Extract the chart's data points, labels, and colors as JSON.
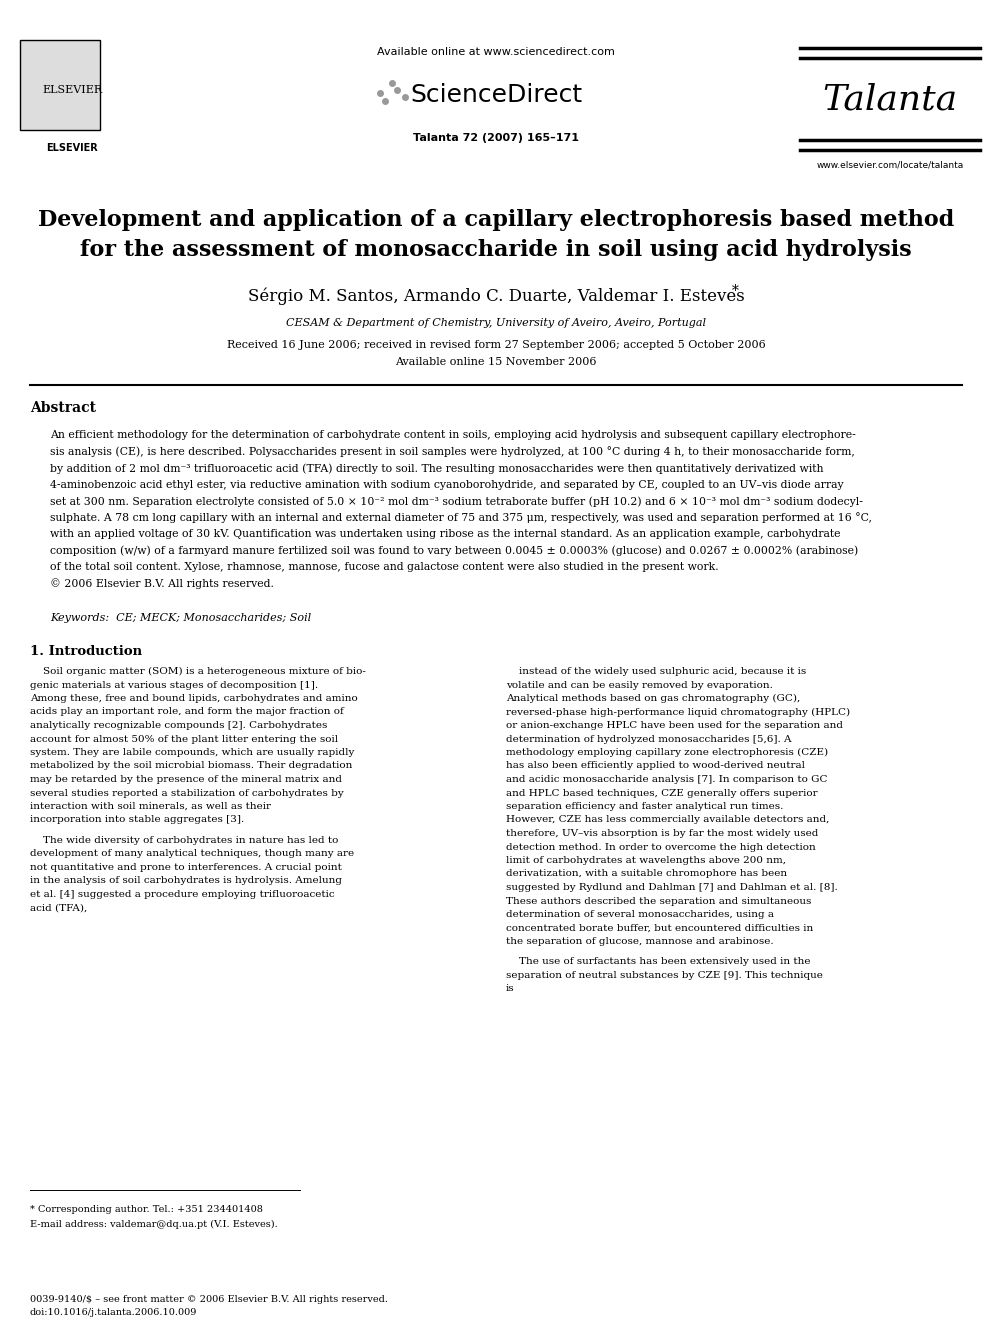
{
  "page_width": 9.92,
  "page_height": 13.23,
  "background_color": "#ffffff",
  "header": {
    "available_online_text": "Available online at www.sciencedirect.com",
    "sciencedirect_text": "ScienceDirect",
    "journal_name": "Talanta",
    "journal_info": "Talanta 72 (2007) 165–171",
    "journal_url": "www.elsevier.com/locate/talanta",
    "elsevier_text": "ELSEVIER"
  },
  "title": {
    "line1": "Development and application of a capillary electrophoresis based method",
    "line2": "for the assessment of monosaccharide in soil using acid hydrolysis"
  },
  "authors": "Sérgio M. Santos, Armando C. Duarte, Valdemar I. Esteves *",
  "affiliation": "CESAM & Department of Chemistry, University of Aveiro, Aveiro, Portugal",
  "received": "Received 16 June 2006; received in revised form 27 September 2006; accepted 5 October 2006",
  "available_online": "Available online 15 November 2006",
  "abstract_title": "Abstract",
  "abstract_text": "An efficient methodology for the determination of carbohydrate content in soils, employing acid hydrolysis and subsequent capillary electrophoresis analysis (CE), is here described. Polysaccharides present in soil samples were hydrolyzed, at 100 °C during 4 h, to their monosaccharide form, by addition of 2 mol dm⁻³ trifluoroacetic acid (TFA) directly to soil. The resulting monosaccharides were then quantitatively derivatized with 4-aminobenzoic acid ethyl ester, via reductive amination with sodium cyanoborohydride, and separated by CE, coupled to an UV–vis diode array set at 300 nm. Separation electrolyte consisted of 5.0 × 10⁻² mol dm⁻³ sodium tetraborate buffer (pH 10.2) and 6 × 10⁻³ mol dm⁻³ sodium dodecylsulphate. A 78 cm long capillary with an internal and external diameter of 75 and 375 μm, respectively, was used and separation performed at 16 °C, with an applied voltage of 30 kV. Quantification was undertaken using ribose as the internal standard. As an application example, carbohydrate composition (w/w) of a farmyard manure fertilized soil was found to vary between 0.0045 ± 0.0003% (glucose) and 0.0267 ± 0.0002% (arabinose) of the total soil content. Xylose, rhamnose, mannose, fucose and galactose content were also studied in the present work.\n© 2006 Elsevier B.V. All rights reserved.",
  "keywords": "Keywords:  CE; MECK; Monosaccharides; Soil",
  "section1_title": "1. Introduction",
  "section1_left": "Soil organic matter (SOM) is a heterogeneous mixture of biogenic materials at various stages of decomposition [1]. Among these, free and bound lipids, carbohydrates and amino acids play an important role, and form the major fraction of analytically recognizable compounds [2]. Carbohydrates account for almost 50% of the plant litter entering the soil system. They are labile compounds, which are usually rapidly metabolized by the soil microbial biomass. Their degradation may be retarded by the presence of the mineral matrix and several studies reported a stabilization of carbohydrates by interaction with soil minerals, as well as their incorporation into stable aggregates [3].\n\nThe wide diversity of carbohydrates in nature has led to development of many analytical techniques, though many are not quantitative and prone to interferences. A crucial point in the analysis of soil carbohydrates is hydrolysis. Amelung et al. [4] suggested a procedure employing trifluoroacetic acid (TFA),",
  "section1_right": "instead of the widely used sulphuric acid, because it is volatile and can be easily removed by evaporation. Analytical methods based on gas chromatography (GC), reversed-phase high-performance liquid chromatography (HPLC) or anion-exchange HPLC have been used for the separation and determination of hydrolyzed monosaccharides [5,6]. A methodology employing capillary zone electrophoresis (CZE) has also been efficiently applied to wood-derived neutral and acidic monosaccharide analysis [7]. In comparison to GC and HPLC based techniques, CZE generally offers superior separation efficiency and faster analytical run times. However, CZE has less commercially available detectors and, therefore, UV–vis absorption is by far the most widely used detection method. In order to overcome the high detection limit of carbohydrates at wavelengths above 200 nm, derivatization, with a suitable chromophore has been suggested by Rydlund and Dahlman [7] and Dahlman et al. [8]. These authors described the separation and simultaneous determination of several monosaccharides, using a concentrated borate buffer, but encountered difficulties in the separation of glucose, mannose and arabinose.\n\nThe use of surfactants has been extensively used in the separation of neutral substances by CZE [9]. This technique is",
  "footnote_star": "* Corresponding author. Tel.: +351 234401408",
  "footnote_email": "E-mail address: valdemar@dq.ua.pt (V.I. Esteves).",
  "footer_issn": "0039-9140/$ – see front matter © 2006 Elsevier B.V. All rights reserved.",
  "footer_doi": "doi:10.1016/j.talanta.2006.10.009"
}
